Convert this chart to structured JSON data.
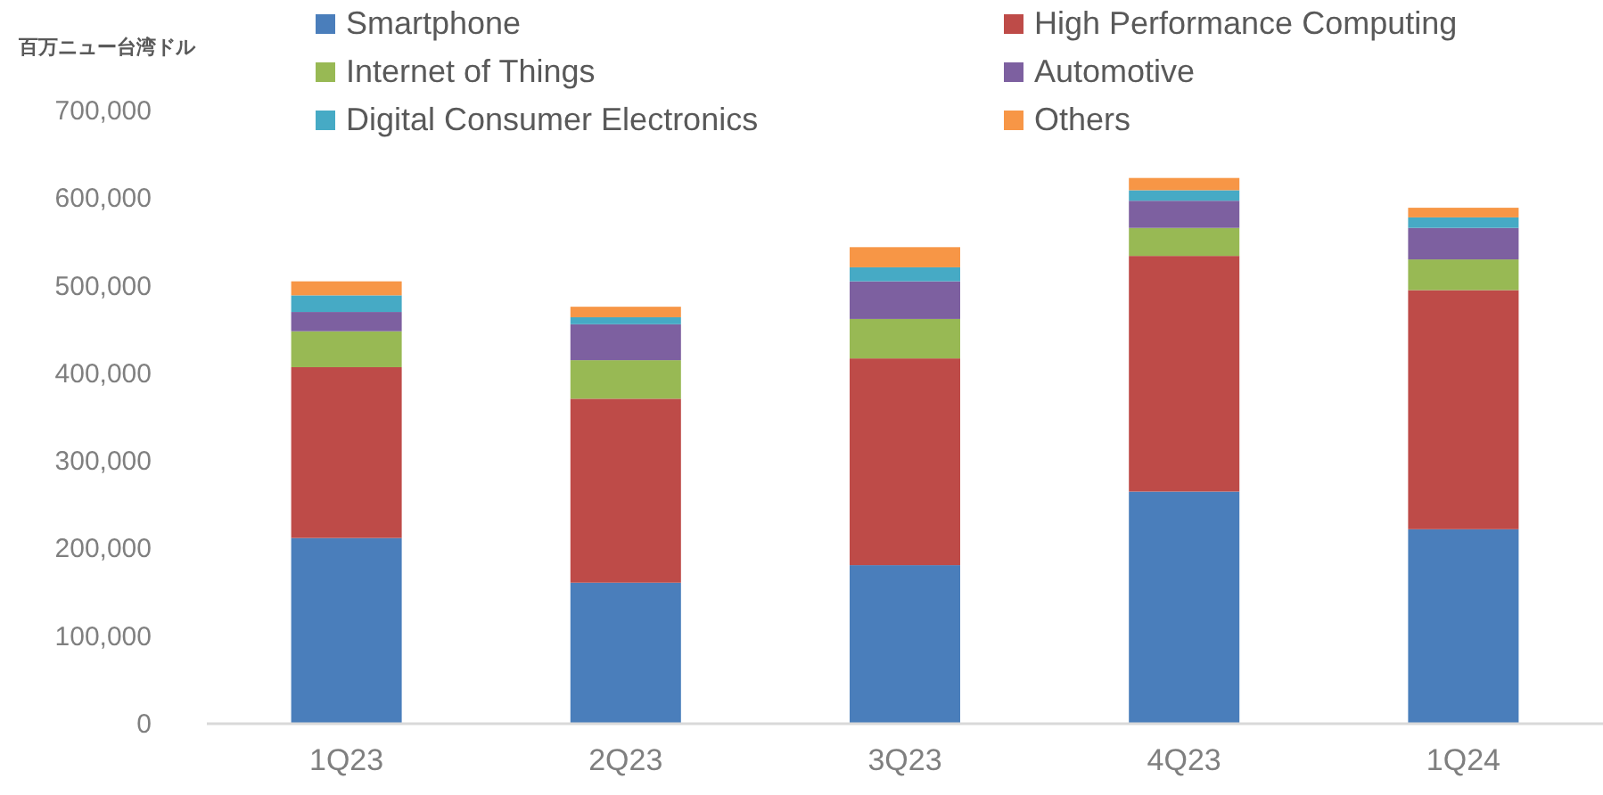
{
  "chart_data": {
    "type": "bar",
    "stacked": true,
    "ylabel": "百万ニュー台湾ドル",
    "categories": [
      "1Q23",
      "2Q23",
      "3Q23",
      "4Q23",
      "1Q24"
    ],
    "series": [
      {
        "name": "Smartphone",
        "color": "#4a7ebb",
        "values": [
          212000,
          161000,
          181000,
          265000,
          222000
        ]
      },
      {
        "name": "High Performance Computing",
        "color": "#be4b48",
        "values": [
          195000,
          210000,
          236000,
          269000,
          273000
        ]
      },
      {
        "name": "Internet of Things",
        "color": "#98b954",
        "values": [
          41000,
          44000,
          45000,
          32000,
          35000
        ]
      },
      {
        "name": "Automotive",
        "color": "#7d60a0",
        "values": [
          22000,
          41000,
          43000,
          31000,
          36000
        ]
      },
      {
        "name": "Digital Consumer Electronics",
        "color": "#46aac5",
        "values": [
          19000,
          8000,
          16000,
          12000,
          12000
        ]
      },
      {
        "name": "Others",
        "color": "#f79646",
        "values": [
          16000,
          12000,
          23000,
          14000,
          11000
        ]
      }
    ],
    "ylim": [
      0,
      700000
    ],
    "yticks": [
      {
        "value": 0,
        "label": "0"
      },
      {
        "value": 100000,
        "label": "100,000"
      },
      {
        "value": 200000,
        "label": "200,000"
      },
      {
        "value": 300000,
        "label": "300,000"
      },
      {
        "value": 400000,
        "label": "400,000"
      },
      {
        "value": 500000,
        "label": "500,000"
      },
      {
        "value": 600000,
        "label": "600,000"
      },
      {
        "value": 700000,
        "label": "700,000"
      }
    ],
    "grid": false,
    "legend": "top"
  }
}
